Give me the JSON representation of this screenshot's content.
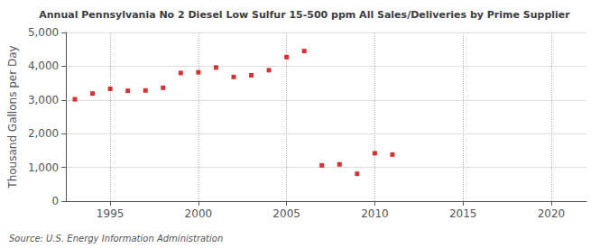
{
  "chart_data": {
    "type": "scatter",
    "title": "Annual Pennsylvania No 2 Diesel Low Sulfur 15-500 ppm All Sales/Deliveries by Prime Supplier",
    "y_label": "Thousand Gallons per Day",
    "annotations": [
      "Source: U.S. Energy Information Administration"
    ],
    "x": [
      1993,
      1994,
      1995,
      1996,
      1997,
      1998,
      1999,
      2000,
      2001,
      2002,
      2003,
      2004,
      2005,
      2006,
      2007,
      2008,
      2009,
      2010,
      2011
    ],
    "values": [
      3020,
      3190,
      3330,
      3270,
      3280,
      3360,
      3800,
      3820,
      3960,
      3680,
      3730,
      3880,
      4270,
      4450,
      1060,
      1090,
      810,
      1420,
      1380
    ],
    "color": "#cc0000",
    "marker": "square",
    "xlim": [
      1992.5,
      2022
    ],
    "xticks": [
      1995,
      2000,
      2005,
      2010,
      2015,
      2020
    ],
    "ylim": [
      0,
      5000
    ],
    "yticks": [
      0,
      {
        "value": 1000,
        "label": "1,000"
      },
      {
        "value": 2000,
        "label": "2,000"
      },
      {
        "value": 3000,
        "label": "3,000"
      },
      {
        "value": 4000,
        "label": "4,000"
      },
      {
        "value": 5000,
        "label": "5,000"
      }
    ],
    "grid": true
  }
}
